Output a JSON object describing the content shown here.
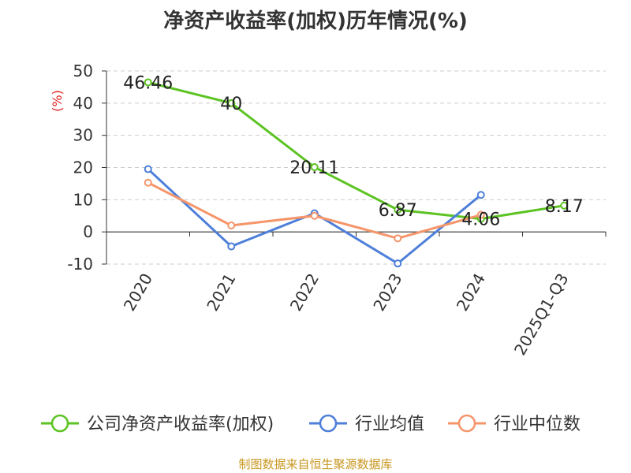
{
  "chart_data": {
    "type": "line",
    "title": "净资产收益率(加权)历年情况(%)",
    "ylabel": "(%)",
    "xlabel": "",
    "categories": [
      "2020",
      "2021",
      "2022",
      "2023",
      "2024",
      "2025Q1-Q3"
    ],
    "ylim": [
      -10,
      50
    ],
    "yticks": [
      -10,
      0,
      10,
      20,
      30,
      40,
      50
    ],
    "grid": true,
    "legend_position": "bottom",
    "series": [
      {
        "name": "公司净资产收益率(加权)",
        "color": "#5cc323",
        "values": [
          46.46,
          40,
          20.11,
          6.87,
          4.06,
          8.17
        ],
        "labels": [
          "46.46",
          "40",
          "20.11",
          "6.87",
          "4.06",
          "8.17"
        ]
      },
      {
        "name": "行业均值",
        "color": "#4e7fd9",
        "values": [
          19.5,
          -4.5,
          5.8,
          -9.8,
          11.5,
          null
        ]
      },
      {
        "name": "行业中位数",
        "color": "#f5956a",
        "values": [
          15.3,
          2,
          5,
          -2,
          5.3,
          null
        ]
      }
    ]
  },
  "footer": {
    "source": "制图数据来自恒生聚源数据库"
  }
}
